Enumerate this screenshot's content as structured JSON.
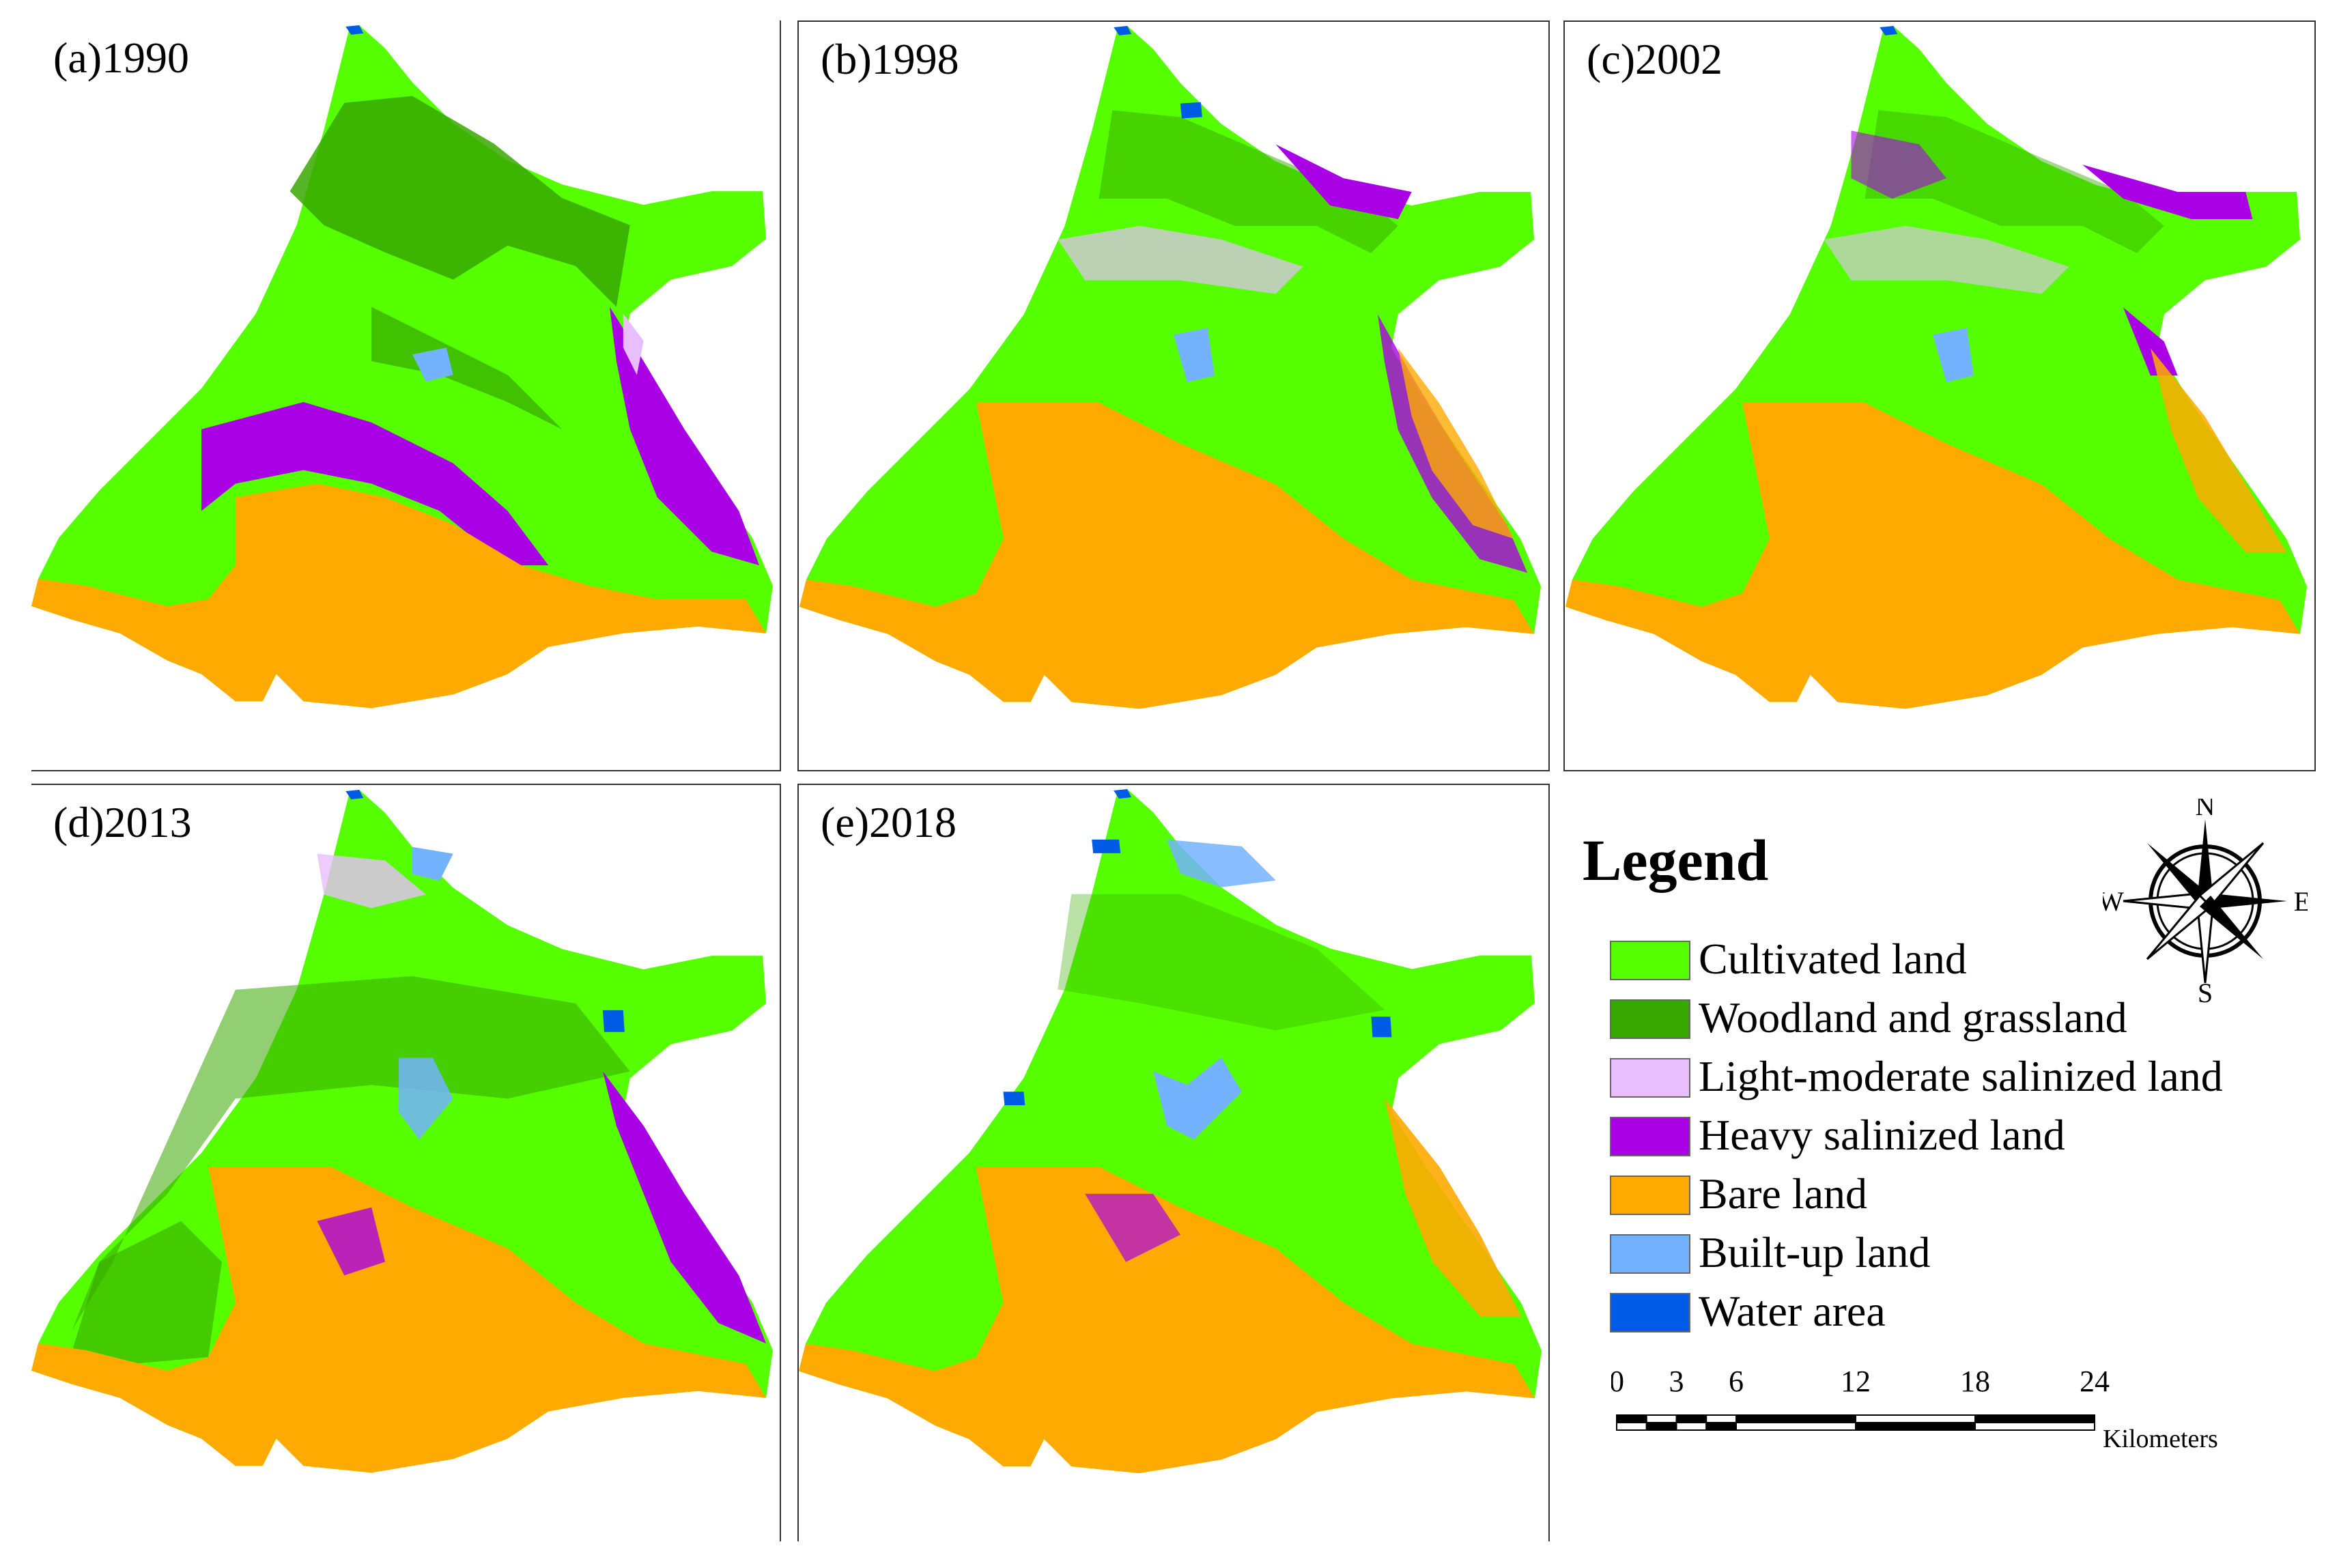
{
  "panels": [
    {
      "id": "a",
      "label": "(a)1990"
    },
    {
      "id": "b",
      "label": "(b)1998"
    },
    {
      "id": "c",
      "label": "(c)2002"
    },
    {
      "id": "d",
      "label": "(d)2013"
    },
    {
      "id": "e",
      "label": "(e)2018"
    }
  ],
  "legend": {
    "title": "Legend",
    "items": [
      {
        "label": "Cultivated land",
        "color": "#55ff00"
      },
      {
        "label": "Woodland and grassland",
        "color": "#38a800"
      },
      {
        "label": "Light-moderate salinized land",
        "color": "#e8beff"
      },
      {
        "label": "Heavy salinized land",
        "color": "#a900e6"
      },
      {
        "label": "Bare land",
        "color": "#ffaa00"
      },
      {
        "label": "Built-up land",
        "color": "#73b2ff"
      },
      {
        "label": "Water area",
        "color": "#005ce6"
      }
    ]
  },
  "compass": {
    "n": "N",
    "s": "S",
    "e": "E",
    "w": "W"
  },
  "scale_bar": {
    "ticks": [
      "0",
      "3",
      "6",
      "12",
      "18",
      "24"
    ],
    "unit": "Kilometers"
  }
}
